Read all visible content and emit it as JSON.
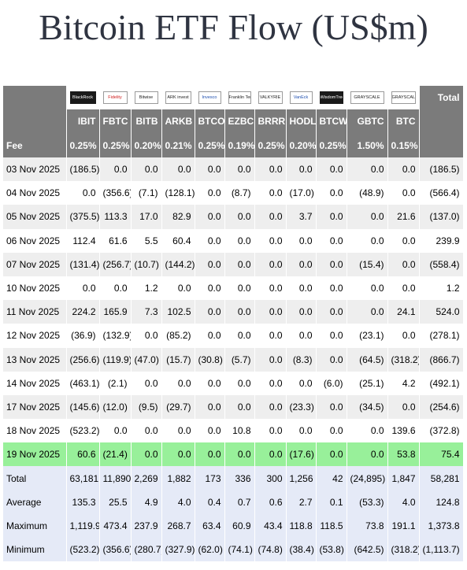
{
  "title": "Bitcoin ETF Flow (US$m)",
  "header": {
    "total_label": "Total",
    "fee_label": "Fee",
    "logos": [
      "BlackRock",
      "Fidelity",
      "Bitwise",
      "ARK invest",
      "Invesco",
      "Franklin Templeton",
      "VALKYRIE",
      "VanEck",
      "WisdomTree",
      "GRAYSCALE",
      "GRAYSCALE"
    ],
    "tickers": [
      "IBIT",
      "FBTC",
      "BITB",
      "ARKB",
      "BTCO",
      "EZBC",
      "BRRR",
      "HODL",
      "BTCW",
      "GBTC",
      "BTC"
    ],
    "fees": [
      "0.25%",
      "0.25%",
      "0.20%",
      "0.21%",
      "0.25%",
      "0.19%",
      "0.25%",
      "0.20%",
      "0.25%",
      "1.50%",
      "0.15%"
    ]
  },
  "colors": {
    "header_bg": "#7b7b7b",
    "negative": "#ff0000",
    "highlight_row": "#98f09a",
    "stats_bg": "#e5eaf7"
  },
  "rows": [
    {
      "date": "03 Nov 2025",
      "values": [
        "(186.5)",
        "0.0",
        "0.0",
        "0.0",
        "0.0",
        "0.0",
        "0.0",
        "0.0",
        "0.0",
        "0.0",
        "0.0"
      ],
      "total": "(186.5)"
    },
    {
      "date": "04 Nov 2025",
      "values": [
        "0.0",
        "(356.6)",
        "(7.1)",
        "(128.1)",
        "0.0",
        "(8.7)",
        "0.0",
        "(17.0)",
        "0.0",
        "(48.9)",
        "0.0"
      ],
      "total": "(566.4)"
    },
    {
      "date": "05 Nov 2025",
      "values": [
        "(375.5)",
        "113.3",
        "17.0",
        "82.9",
        "0.0",
        "0.0",
        "0.0",
        "3.7",
        "0.0",
        "0.0",
        "21.6"
      ],
      "total": "(137.0)"
    },
    {
      "date": "06 Nov 2025",
      "values": [
        "112.4",
        "61.6",
        "5.5",
        "60.4",
        "0.0",
        "0.0",
        "0.0",
        "0.0",
        "0.0",
        "0.0",
        "0.0"
      ],
      "total": "239.9"
    },
    {
      "date": "07 Nov 2025",
      "values": [
        "(131.4)",
        "(256.7)",
        "(10.7)",
        "(144.2)",
        "0.0",
        "0.0",
        "0.0",
        "0.0",
        "0.0",
        "(15.4)",
        "0.0"
      ],
      "total": "(558.4)"
    },
    {
      "date": "10 Nov 2025",
      "values": [
        "0.0",
        "0.0",
        "1.2",
        "0.0",
        "0.0",
        "0.0",
        "0.0",
        "0.0",
        "0.0",
        "0.0",
        "0.0"
      ],
      "total": "1.2"
    },
    {
      "date": "11 Nov 2025",
      "values": [
        "224.2",
        "165.9",
        "7.3",
        "102.5",
        "0.0",
        "0.0",
        "0.0",
        "0.0",
        "0.0",
        "0.0",
        "24.1"
      ],
      "total": "524.0"
    },
    {
      "date": "12 Nov 2025",
      "values": [
        "(36.9)",
        "(132.9)",
        "0.0",
        "(85.2)",
        "0.0",
        "0.0",
        "0.0",
        "0.0",
        "0.0",
        "(23.1)",
        "0.0"
      ],
      "total": "(278.1)"
    },
    {
      "date": "13 Nov 2025",
      "values": [
        "(256.6)",
        "(119.9)",
        "(47.0)",
        "(15.7)",
        "(30.8)",
        "(5.7)",
        "0.0",
        "(8.3)",
        "0.0",
        "(64.5)",
        "(318.2)"
      ],
      "total": "(866.7)"
    },
    {
      "date": "14 Nov 2025",
      "values": [
        "(463.1)",
        "(2.1)",
        "0.0",
        "0.0",
        "0.0",
        "0.0",
        "0.0",
        "0.0",
        "(6.0)",
        "(25.1)",
        "4.2"
      ],
      "total": "(492.1)"
    },
    {
      "date": "17 Nov 2025",
      "values": [
        "(145.6)",
        "(12.0)",
        "(9.5)",
        "(29.7)",
        "0.0",
        "0.0",
        "0.0",
        "(23.3)",
        "0.0",
        "(34.5)",
        "0.0"
      ],
      "total": "(254.6)"
    },
    {
      "date": "18 Nov 2025",
      "values": [
        "(523.2)",
        "0.0",
        "0.0",
        "0.0",
        "0.0",
        "10.8",
        "0.0",
        "0.0",
        "0.0",
        "0.0",
        "139.6"
      ],
      "total": "(372.8)"
    },
    {
      "date": "19 Nov 2025",
      "values": [
        "60.6",
        "(21.4)",
        "0.0",
        "0.0",
        "0.0",
        "0.0",
        "0.0",
        "(17.6)",
        "0.0",
        "0.0",
        "53.8"
      ],
      "total": "75.4",
      "highlight": true
    }
  ],
  "stats": [
    {
      "label": "Total",
      "values": [
        "63,181",
        "11,890",
        "2,269",
        "1,882",
        "173",
        "336",
        "300",
        "1,256",
        "42",
        "(24,895)",
        "1,847"
      ],
      "total": "58,281"
    },
    {
      "label": "Average",
      "values": [
        "135.3",
        "25.5",
        "4.9",
        "4.0",
        "0.4",
        "0.7",
        "0.6",
        "2.7",
        "0.1",
        "(53.3)",
        "4.0"
      ],
      "total": "124.8"
    },
    {
      "label": "Maximum",
      "values": [
        "1,119.9",
        "473.4",
        "237.9",
        "268.7",
        "63.4",
        "60.9",
        "43.4",
        "118.8",
        "118.5",
        "73.8",
        "191.1"
      ],
      "total": "1,373.8"
    },
    {
      "label": "Minimum",
      "values": [
        "(523.2)",
        "(356.6)",
        "(280.7)",
        "(327.9)",
        "(62.0)",
        "(74.1)",
        "(74.8)",
        "(38.4)",
        "(53.8)",
        "(642.5)",
        "(318.2)"
      ],
      "total": "(1,113.7)"
    }
  ]
}
